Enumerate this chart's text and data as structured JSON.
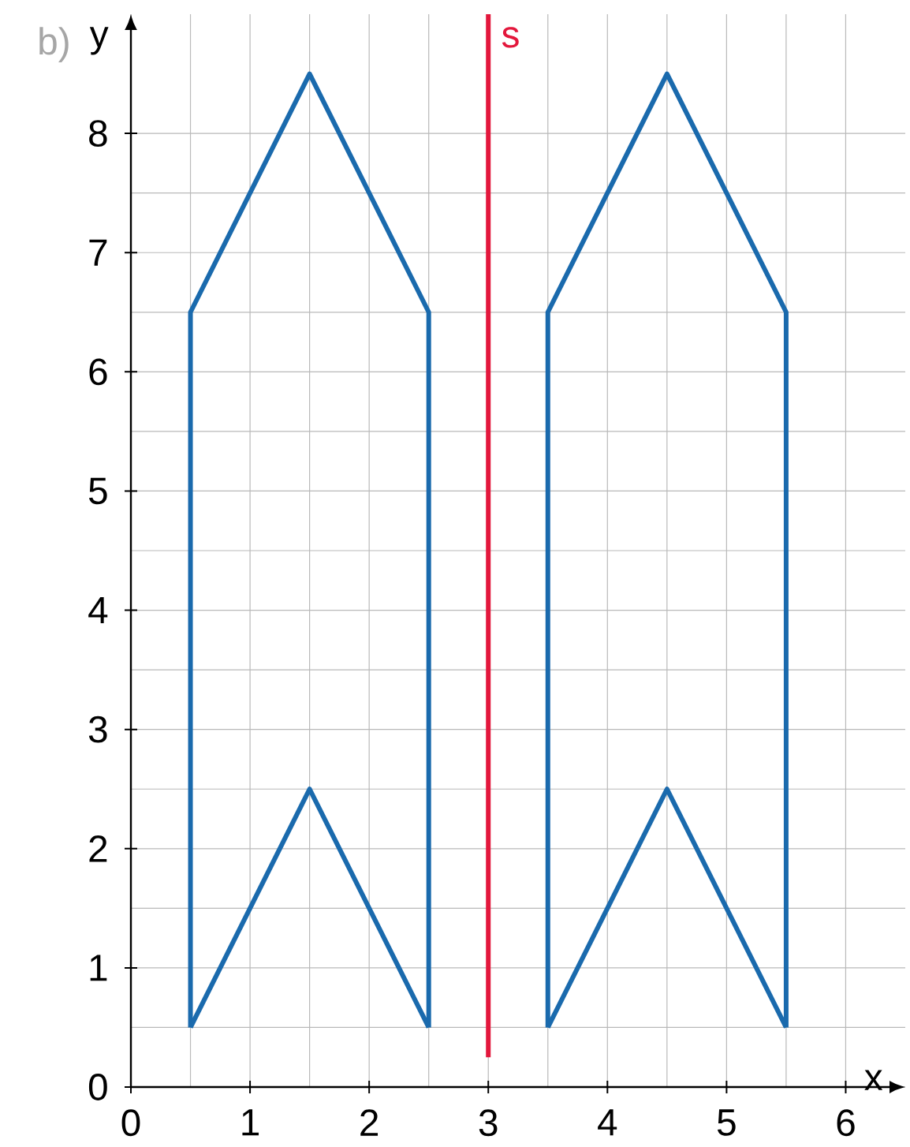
{
  "chart_data": {
    "type": "line",
    "title": "b)",
    "xlabel": "x",
    "ylabel": "y",
    "xlim": [
      0,
      6.5
    ],
    "ylim": [
      0,
      9
    ],
    "xticks": [
      0,
      1,
      2,
      3,
      4,
      5,
      6
    ],
    "yticks": [
      0,
      1,
      2,
      3,
      4,
      5,
      6,
      7,
      8
    ],
    "grid": true,
    "series": [
      {
        "color": "#1a6aad",
        "x": [
          0.5,
          0.5,
          1.5,
          2.5,
          2.5
        ],
        "values": [
          0.5,
          6.5,
          8.5,
          6.5,
          0.5
        ]
      },
      {
        "color": "#1a6aad",
        "x": [
          0.5,
          1.5,
          2.5
        ],
        "values": [
          0.5,
          2.5,
          0.5
        ]
      },
      {
        "color": "#1a6aad",
        "x": [
          3.5,
          3.5,
          4.5,
          5.5,
          5.5
        ],
        "values": [
          0.5,
          6.5,
          8.5,
          6.5,
          0.5
        ]
      },
      {
        "color": "#1a6aad",
        "x": [
          3.5,
          4.5,
          5.5
        ],
        "values": [
          0.5,
          2.5,
          0.5
        ]
      },
      {
        "name": "s",
        "color": "#e3173c",
        "x": [
          3,
          3
        ],
        "values": [
          0.25,
          9
        ]
      }
    ]
  }
}
